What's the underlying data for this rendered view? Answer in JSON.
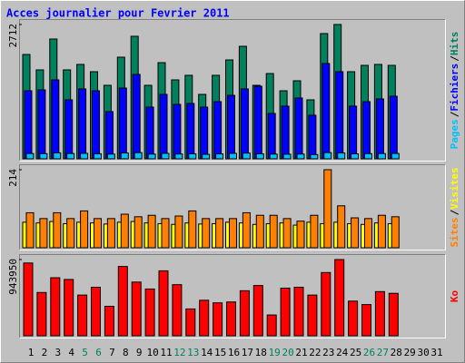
{
  "chart_data": {
    "type": "bar",
    "title": "Acces journalier pour Fevrier 2011",
    "legend_separator": "/",
    "categories": [
      "1",
      "2",
      "3",
      "4",
      "5",
      "6",
      "7",
      "8",
      "9",
      "10",
      "11",
      "12",
      "13",
      "14",
      "15",
      "16",
      "17",
      "18",
      "19",
      "20",
      "21",
      "22",
      "23",
      "24",
      "25",
      "26",
      "27",
      "28",
      "29",
      "30",
      "31"
    ],
    "category_colors": [
      "#000000",
      "#000000",
      "#000000",
      "#000000",
      "#00805c",
      "#00805c",
      "#000000",
      "#000000",
      "#000000",
      "#000000",
      "#000000",
      "#00805c",
      "#00805c",
      "#000000",
      "#000000",
      "#000000",
      "#000000",
      "#000000",
      "#00805c",
      "#00805c",
      "#000000",
      "#000000",
      "#000000",
      "#000000",
      "#000000",
      "#00805c",
      "#00805c",
      "#000000",
      "#000000",
      "#000000",
      "#000000"
    ],
    "panels": [
      {
        "ylim": [
          0,
          2712
        ],
        "yticks": [
          2712
        ],
        "series": [
          {
            "name": "Hits",
            "color": "#00805c",
            "values": [
              2107,
              1796,
              2419,
              1796,
              1906,
              1759,
              1484,
              2052,
              2474,
              1484,
              1942,
              1594,
              1686,
              1301,
              1686,
              1997,
              2272,
              1484,
              1722,
              1374,
              1576,
              1191,
              2529,
              2712,
              1759,
              1887,
              1906,
              1887,
              null,
              null,
              null
            ]
          },
          {
            "name": "Fichiers",
            "color": "#0000ff",
            "values": [
              1374,
              1392,
              1594,
              1191,
              1411,
              1374,
              953,
              1429,
              1704,
              1044,
              1301,
              1099,
              1118,
              1044,
              1154,
              1282,
              1411,
              1466,
              916,
              1063,
              1228,
              879,
              1924,
              1759,
              1063,
              1154,
              1209,
              1264,
              null,
              null,
              null
            ]
          },
          {
            "name": "Pages",
            "color": "#00c0ff",
            "values": [
              107,
              104,
              120,
              107,
              110,
              102,
              95,
              118,
              124,
              95,
              110,
              97,
              100,
              90,
              99,
              110,
              115,
              100,
              95,
              92,
              96,
              86,
              125,
              118,
              100,
              104,
              106,
              108,
              null,
              null,
              null
            ]
          }
        ]
      },
      {
        "ylim": [
          0,
          214
        ],
        "yticks": [
          214
        ],
        "series": [
          {
            "name": "Visites",
            "color": "#ffff00",
            "values": [
              70,
              68,
              72,
              66,
              70,
              68,
              65,
              70,
              72,
              68,
              66,
              64,
              68,
              65,
              66,
              70,
              68,
              64,
              66,
              68,
              62,
              70,
              66,
              70,
              66,
              64,
              68,
              66,
              null,
              null,
              null
            ]
          },
          {
            "name": "Sites",
            "color": "#ff8000",
            "values": [
              96,
              80,
              96,
              80,
              101,
              80,
              80,
              92,
              85,
              89,
              80,
              87,
              101,
              80,
              80,
              80,
              96,
              89,
              89,
              80,
              73,
              89,
              214,
              115,
              82,
              80,
              89,
              85,
              null,
              null,
              null
            ]
          }
        ]
      },
      {
        "ylim": [
          0,
          943950
        ],
        "yticks": [
          943950
        ],
        "series": [
          {
            "name": "Ko",
            "color": "#ff0000",
            "values": [
              901068,
              536350,
              718709,
              697255,
              504169,
              600712,
              364718,
              858160,
              665074,
              579258,
              804525,
              632893,
              332537,
              439807,
              407626,
              418353,
              557804,
              622166,
              257448,
              589985,
              600712,
              504169,
              783071,
              943950,
              429080,
              386172,
              547077,
              525623,
              null,
              null,
              null
            ]
          }
        ]
      }
    ]
  }
}
